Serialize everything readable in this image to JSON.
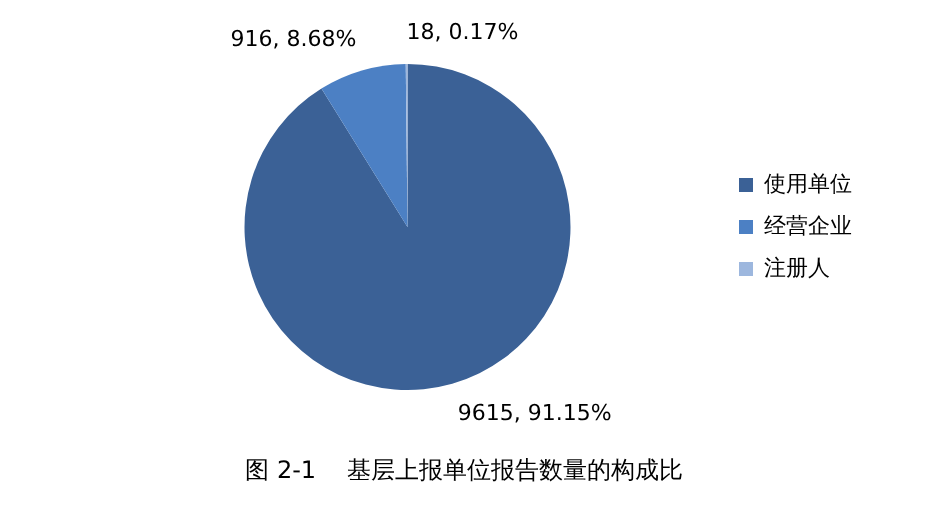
{
  "chart_data": {
    "type": "pie",
    "categories": [
      "使用单位",
      "经营企业",
      "注册人"
    ],
    "values": [
      9615,
      916,
      18
    ],
    "colors": [
      "#3b6196",
      "#4c80c4",
      "#9db7de"
    ],
    "value_labels": [
      "9615, 91.15%",
      "916, 8.68%",
      "18, 0.17%"
    ],
    "legend": "right",
    "annotations": [
      "图 2-1    基层上报单位报告数量的构成比"
    ]
  }
}
